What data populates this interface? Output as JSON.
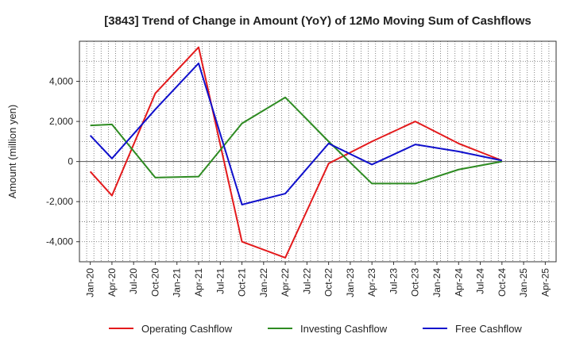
{
  "chart_data": {
    "type": "line",
    "title": "[3843]  Trend of Change in Amount (YoY) of 12Mo Moving Sum of Cashflows",
    "ylabel": "Amount (million yen)",
    "xlabel": "",
    "ylim": [
      -5000,
      6000
    ],
    "yticks": [
      -4000,
      -2000,
      0,
      2000,
      4000
    ],
    "ytick_labels": [
      "-4,000",
      "-2,000",
      "0",
      "2,000",
      "4,000"
    ],
    "categories": [
      "Jan-20",
      "Apr-20",
      "Jul-20",
      "Oct-20",
      "Jan-21",
      "Apr-21",
      "Jul-21",
      "Oct-21",
      "Jan-22",
      "Apr-22",
      "Jul-22",
      "Oct-22",
      "Jan-23",
      "Apr-23",
      "Jul-23",
      "Oct-23",
      "Jan-24",
      "Apr-24",
      "Jul-24",
      "Oct-24",
      "Jan-25",
      "Apr-25"
    ],
    "grid": true,
    "legend_position": "bottom",
    "series": [
      {
        "name": "Operating Cashflow",
        "color": "#e31a1c",
        "points": [
          {
            "x": "Jan-20",
            "y": -500
          },
          {
            "x": "Apr-20",
            "y": -1700
          },
          {
            "x": "Oct-20",
            "y": 3400
          },
          {
            "x": "Apr-21",
            "y": 5700
          },
          {
            "x": "Oct-21",
            "y": -4000
          },
          {
            "x": "Apr-22",
            "y": -4800
          },
          {
            "x": "Oct-22",
            "y": -100
          },
          {
            "x": "Apr-23",
            "y": 1000
          },
          {
            "x": "Oct-23",
            "y": 2000
          },
          {
            "x": "Apr-24",
            "y": 900
          },
          {
            "x": "Oct-24",
            "y": 50
          }
        ]
      },
      {
        "name": "Investing Cashflow",
        "color": "#2e8b22",
        "points": [
          {
            "x": "Jan-20",
            "y": 1800
          },
          {
            "x": "Apr-20",
            "y": 1850
          },
          {
            "x": "Oct-20",
            "y": -800
          },
          {
            "x": "Apr-21",
            "y": -750
          },
          {
            "x": "Oct-21",
            "y": 1900
          },
          {
            "x": "Apr-22",
            "y": 3200
          },
          {
            "x": "Oct-22",
            "y": 1000
          },
          {
            "x": "Apr-23",
            "y": -1100
          },
          {
            "x": "Oct-23",
            "y": -1100
          },
          {
            "x": "Apr-24",
            "y": -400
          },
          {
            "x": "Oct-24",
            "y": 0
          }
        ]
      },
      {
        "name": "Free Cashflow",
        "color": "#1010cc",
        "points": [
          {
            "x": "Jan-20",
            "y": 1300
          },
          {
            "x": "Apr-20",
            "y": 150
          },
          {
            "x": "Oct-20",
            "y": 2600
          },
          {
            "x": "Apr-21",
            "y": 4900
          },
          {
            "x": "Oct-21",
            "y": -2150
          },
          {
            "x": "Apr-22",
            "y": -1600
          },
          {
            "x": "Oct-22",
            "y": 900
          },
          {
            "x": "Apr-23",
            "y": -150
          },
          {
            "x": "Oct-23",
            "y": 850
          },
          {
            "x": "Apr-24",
            "y": 500
          },
          {
            "x": "Oct-24",
            "y": 50
          }
        ]
      }
    ]
  }
}
